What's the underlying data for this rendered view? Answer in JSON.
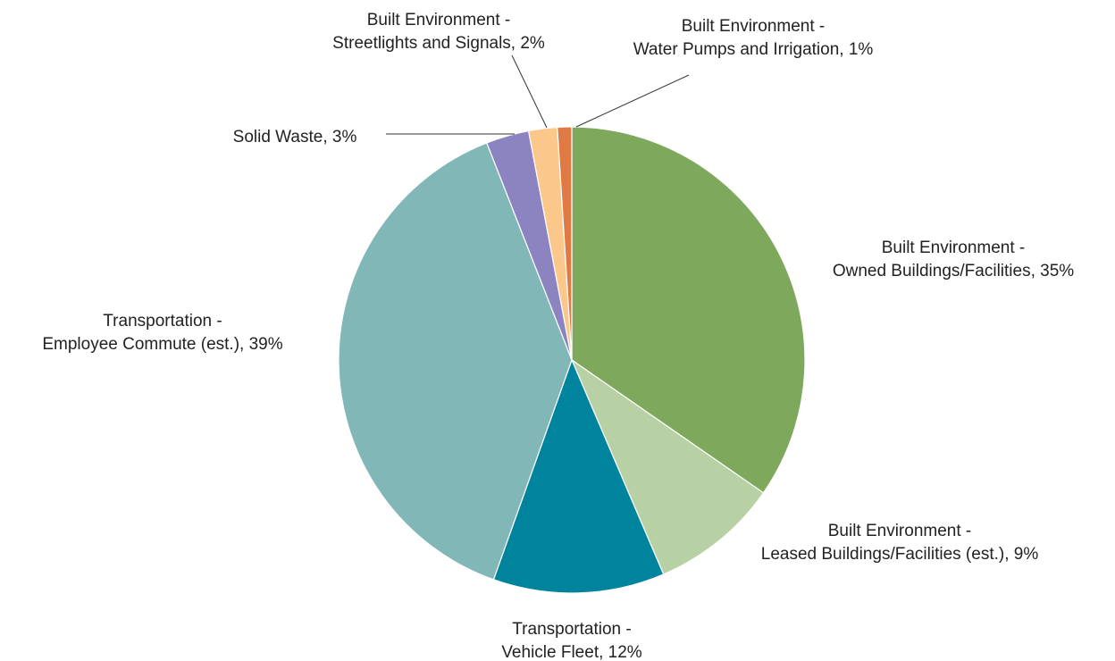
{
  "chart_data": {
    "type": "pie",
    "title": "",
    "slices": [
      {
        "line1": "Built Environment -",
        "line2": "Owned Buildings/Facilities, 35%",
        "value": 35,
        "color": "#7ea95c"
      },
      {
        "line1": "Built Environment -",
        "line2": "Leased Buildings/Facilities (est.), 9%",
        "value": 9,
        "color": "#b8d1a4"
      },
      {
        "line1": "Transportation -",
        "line2": "Vehicle Fleet, 12%",
        "value": 12,
        "color": "#00849d"
      },
      {
        "line1": "Transportation -",
        "line2": "Employee Commute (est.), 39%",
        "value": 39,
        "color": "#82b7b8"
      },
      {
        "line1": "",
        "line2": "Solid Waste, 3%",
        "value": 3,
        "color": "#8b84c1"
      },
      {
        "line1": "Built Environment -",
        "line2": "Streetlights and Signals, 2%",
        "value": 2,
        "color": "#fcc78a"
      },
      {
        "line1": "Built Environment -",
        "line2": "Water Pumps and Irrigation, 1%",
        "value": 1,
        "color": "#e07a45"
      }
    ]
  }
}
